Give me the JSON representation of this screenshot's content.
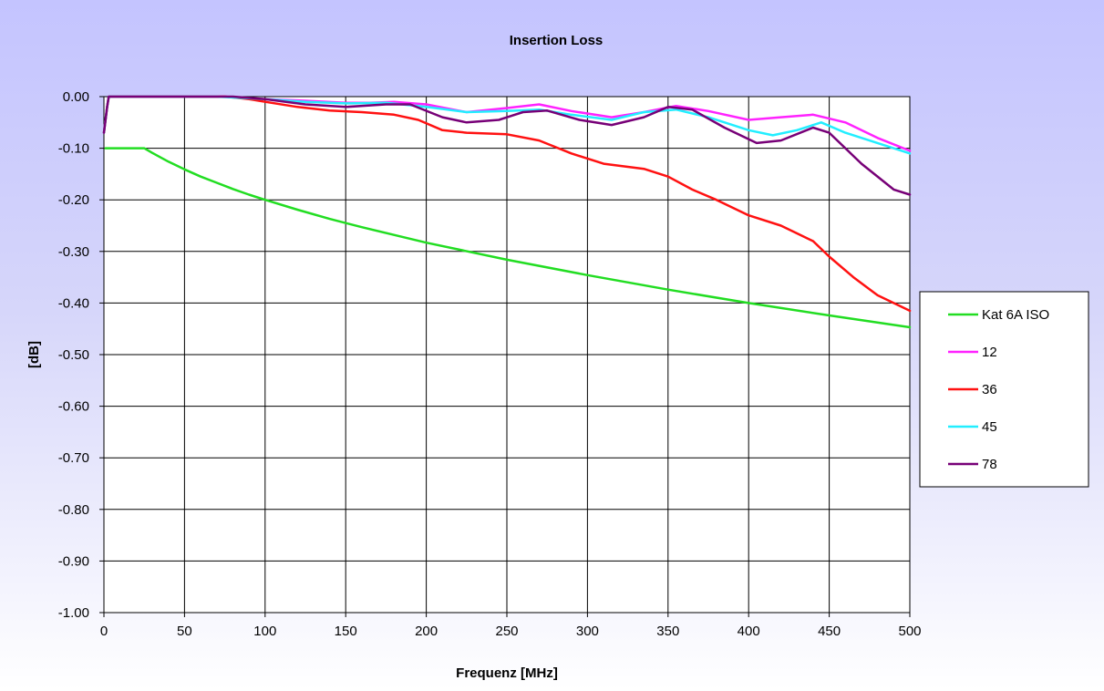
{
  "chart_data": {
    "type": "line",
    "title": "Insertion Loss",
    "xlabel": "Frequenz [MHz]",
    "ylabel": "[dB]",
    "xlim": [
      0,
      500
    ],
    "ylim": [
      -1.0,
      0.0
    ],
    "x_ticks": [
      "0",
      "50",
      "100",
      "150",
      "200",
      "250",
      "300",
      "350",
      "400",
      "450",
      "500"
    ],
    "y_ticks": [
      "0.00",
      "-0.10",
      "-0.20",
      "-0.30",
      "-0.40",
      "-0.50",
      "-0.60",
      "-0.70",
      "-0.80",
      "-0.90",
      "-1.00"
    ],
    "grid": true,
    "legend_position": "right",
    "series": [
      {
        "name": "Kat 6A ISO",
        "color": "#22dd22",
        "points": [
          [
            1,
            -0.1
          ],
          [
            10,
            -0.1
          ],
          [
            20,
            -0.1
          ],
          [
            25,
            -0.1
          ],
          [
            30,
            -0.109
          ],
          [
            40,
            -0.126
          ],
          [
            50,
            -0.141
          ],
          [
            60,
            -0.155
          ],
          [
            70,
            -0.167
          ],
          [
            80,
            -0.179
          ],
          [
            90,
            -0.19
          ],
          [
            100,
            -0.2
          ],
          [
            120,
            -0.219
          ],
          [
            140,
            -0.237
          ],
          [
            160,
            -0.253
          ],
          [
            180,
            -0.268
          ],
          [
            200,
            -0.283
          ],
          [
            250,
            -0.316
          ],
          [
            300,
            -0.346
          ],
          [
            350,
            -0.374
          ],
          [
            400,
            -0.4
          ],
          [
            450,
            -0.424
          ],
          [
            500,
            -0.447
          ]
        ]
      },
      {
        "name": "12",
        "color": "#ff22ff",
        "points": [
          [
            0,
            -0.07
          ],
          [
            2,
            -0.02
          ],
          [
            3,
            0.0
          ],
          [
            25,
            0.0
          ],
          [
            50,
            0.0
          ],
          [
            75,
            0.0
          ],
          [
            100,
            -0.005
          ],
          [
            125,
            -0.008
          ],
          [
            150,
            -0.012
          ],
          [
            165,
            -0.012
          ],
          [
            180,
            -0.01
          ],
          [
            200,
            -0.015
          ],
          [
            225,
            -0.03
          ],
          [
            250,
            -0.022
          ],
          [
            270,
            -0.015
          ],
          [
            290,
            -0.028
          ],
          [
            315,
            -0.04
          ],
          [
            335,
            -0.03
          ],
          [
            355,
            -0.018
          ],
          [
            375,
            -0.028
          ],
          [
            400,
            -0.045
          ],
          [
            420,
            -0.04
          ],
          [
            440,
            -0.035
          ],
          [
            460,
            -0.05
          ],
          [
            480,
            -0.08
          ],
          [
            500,
            -0.105
          ]
        ]
      },
      {
        "name": "36",
        "color": "#ff1111",
        "points": [
          [
            0,
            -0.07
          ],
          [
            2,
            -0.02
          ],
          [
            3,
            0.0
          ],
          [
            50,
            0.0
          ],
          [
            75,
            0.0
          ],
          [
            90,
            -0.005
          ],
          [
            100,
            -0.01
          ],
          [
            120,
            -0.02
          ],
          [
            140,
            -0.027
          ],
          [
            160,
            -0.03
          ],
          [
            180,
            -0.035
          ],
          [
            195,
            -0.045
          ],
          [
            210,
            -0.065
          ],
          [
            225,
            -0.07
          ],
          [
            250,
            -0.073
          ],
          [
            270,
            -0.085
          ],
          [
            290,
            -0.11
          ],
          [
            310,
            -0.13
          ],
          [
            335,
            -0.14
          ],
          [
            350,
            -0.155
          ],
          [
            365,
            -0.18
          ],
          [
            380,
            -0.2
          ],
          [
            400,
            -0.23
          ],
          [
            420,
            -0.25
          ],
          [
            440,
            -0.28
          ],
          [
            450,
            -0.31
          ],
          [
            465,
            -0.35
          ],
          [
            480,
            -0.385
          ],
          [
            500,
            -0.415
          ]
        ]
      },
      {
        "name": "45",
        "color": "#22eeff",
        "points": [
          [
            0,
            -0.07
          ],
          [
            2,
            -0.02
          ],
          [
            3,
            0.0
          ],
          [
            50,
            0.0
          ],
          [
            70,
            0.0
          ],
          [
            100,
            -0.005
          ],
          [
            125,
            -0.01
          ],
          [
            150,
            -0.013
          ],
          [
            175,
            -0.012
          ],
          [
            200,
            -0.02
          ],
          [
            225,
            -0.03
          ],
          [
            250,
            -0.028
          ],
          [
            270,
            -0.025
          ],
          [
            290,
            -0.035
          ],
          [
            315,
            -0.045
          ],
          [
            335,
            -0.03
          ],
          [
            355,
            -0.025
          ],
          [
            375,
            -0.04
          ],
          [
            400,
            -0.065
          ],
          [
            415,
            -0.075
          ],
          [
            430,
            -0.065
          ],
          [
            445,
            -0.05
          ],
          [
            460,
            -0.07
          ],
          [
            480,
            -0.09
          ],
          [
            500,
            -0.11
          ]
        ]
      },
      {
        "name": "78",
        "color": "#770077",
        "points": [
          [
            0,
            -0.07
          ],
          [
            2,
            -0.02
          ],
          [
            3,
            0.0
          ],
          [
            50,
            0.0
          ],
          [
            80,
            0.0
          ],
          [
            100,
            -0.005
          ],
          [
            125,
            -0.015
          ],
          [
            150,
            -0.02
          ],
          [
            175,
            -0.015
          ],
          [
            190,
            -0.015
          ],
          [
            210,
            -0.04
          ],
          [
            225,
            -0.05
          ],
          [
            245,
            -0.045
          ],
          [
            260,
            -0.03
          ],
          [
            275,
            -0.027
          ],
          [
            295,
            -0.045
          ],
          [
            315,
            -0.055
          ],
          [
            335,
            -0.04
          ],
          [
            350,
            -0.02
          ],
          [
            365,
            -0.025
          ],
          [
            385,
            -0.06
          ],
          [
            405,
            -0.09
          ],
          [
            420,
            -0.085
          ],
          [
            440,
            -0.06
          ],
          [
            450,
            -0.07
          ],
          [
            470,
            -0.13
          ],
          [
            490,
            -0.18
          ],
          [
            500,
            -0.19
          ]
        ]
      }
    ]
  }
}
